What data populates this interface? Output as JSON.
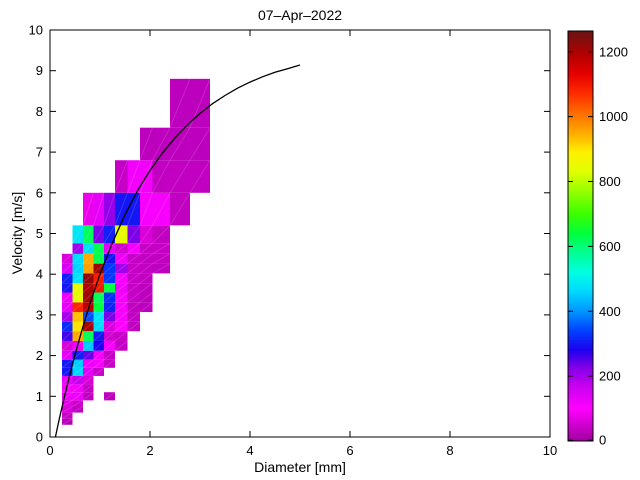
{
  "figure": {
    "background": "#ffffff"
  },
  "chart_data": {
    "type": "heatmap",
    "title": "07–Apr–2022",
    "xlabel": "Diameter [mm]",
    "ylabel": "Velocity [m/s]",
    "xlim": [
      0,
      10
    ],
    "ylim": [
      0,
      10
    ],
    "xticks": [
      0,
      2,
      4,
      6,
      8,
      10
    ],
    "yticks": [
      0,
      1,
      2,
      3,
      4,
      5,
      6,
      7,
      8,
      9,
      10
    ],
    "grid": "off",
    "colorbar": {
      "position": "right",
      "min": 0,
      "max": 1264,
      "ticks": [
        0,
        200,
        400,
        600,
        800,
        1000,
        1200
      ],
      "colormap_stops": [
        [
          0,
          "#a000a0"
        ],
        [
          100,
          "#ff00ff"
        ],
        [
          170,
          "#c800f0"
        ],
        [
          230,
          "#7d00e6"
        ],
        [
          280,
          "#1e00f0"
        ],
        [
          340,
          "#0041ff"
        ],
        [
          400,
          "#0096ff"
        ],
        [
          460,
          "#00d7ff"
        ],
        [
          520,
          "#00ffe1"
        ],
        [
          580,
          "#00ff91"
        ],
        [
          640,
          "#00ff3c"
        ],
        [
          700,
          "#3cff00"
        ],
        [
          770,
          "#96ff00"
        ],
        [
          830,
          "#e1ff00"
        ],
        [
          890,
          "#fff000"
        ],
        [
          950,
          "#ffaa00"
        ],
        [
          1010,
          "#ff6e00"
        ],
        [
          1070,
          "#ff2d00"
        ],
        [
          1130,
          "#e60000"
        ],
        [
          1190,
          "#b40000"
        ],
        [
          1264,
          "#691414"
        ]
      ]
    },
    "diameter_bin_edges": [
      0.24,
      0.45,
      0.66,
      0.87,
      1.08,
      1.3,
      1.55,
      1.8,
      2.05,
      2.4,
      2.8,
      3.2
    ],
    "velocity_bin_edges": [
      0.3,
      0.45,
      0.6,
      0.75,
      0.9,
      1.1,
      1.3,
      1.5,
      1.7,
      1.9,
      2.12,
      2.36,
      2.6,
      2.83,
      3.07,
      3.31,
      3.55,
      3.78,
      4.02,
      4.26,
      4.5,
      4.76,
      5.2,
      6.0,
      6.8,
      7.6,
      8.8
    ],
    "cells": [
      [
        0,
        0,
        25
      ],
      [
        0,
        1,
        40
      ],
      [
        0,
        2,
        60
      ],
      [
        1,
        2,
        35
      ],
      [
        0,
        3,
        70
      ],
      [
        1,
        3,
        45
      ],
      [
        0,
        4,
        120
      ],
      [
        1,
        4,
        120
      ],
      [
        2,
        4,
        35
      ],
      [
        4,
        4,
        30
      ],
      [
        0,
        5,
        110
      ],
      [
        1,
        5,
        115
      ],
      [
        2,
        5,
        40
      ],
      [
        0,
        6,
        130
      ],
      [
        1,
        6,
        170
      ],
      [
        2,
        6,
        60
      ],
      [
        0,
        7,
        300
      ],
      [
        1,
        7,
        460
      ],
      [
        2,
        7,
        140
      ],
      [
        3,
        7,
        45
      ],
      [
        0,
        8,
        300
      ],
      [
        1,
        8,
        450
      ],
      [
        2,
        8,
        120
      ],
      [
        3,
        8,
        110
      ],
      [
        4,
        8,
        40
      ],
      [
        0,
        9,
        130
      ],
      [
        1,
        9,
        310
      ],
      [
        2,
        9,
        240
      ],
      [
        3,
        9,
        110
      ],
      [
        4,
        9,
        40
      ],
      [
        0,
        10,
        60
      ],
      [
        1,
        10,
        120
      ],
      [
        2,
        10,
        450
      ],
      [
        3,
        10,
        280
      ],
      [
        4,
        10,
        110
      ],
      [
        5,
        10,
        40
      ],
      [
        0,
        11,
        260
      ],
      [
        1,
        11,
        950
      ],
      [
        2,
        11,
        620
      ],
      [
        3,
        11,
        300
      ],
      [
        4,
        11,
        50
      ],
      [
        5,
        11,
        40
      ],
      [
        0,
        12,
        320
      ],
      [
        1,
        12,
        900
      ],
      [
        2,
        12,
        1200
      ],
      [
        3,
        12,
        470
      ],
      [
        4,
        12,
        60
      ],
      [
        5,
        12,
        100
      ],
      [
        6,
        12,
        35
      ],
      [
        0,
        13,
        200
      ],
      [
        1,
        13,
        930
      ],
      [
        2,
        13,
        350
      ],
      [
        3,
        13,
        480
      ],
      [
        4,
        13,
        230
      ],
      [
        5,
        13,
        110
      ],
      [
        6,
        13,
        35
      ],
      [
        0,
        14,
        130
      ],
      [
        1,
        14,
        1080
      ],
      [
        2,
        14,
        1180
      ],
      [
        3,
        14,
        640
      ],
      [
        4,
        14,
        310
      ],
      [
        5,
        14,
        110
      ],
      [
        6,
        14,
        35
      ],
      [
        7,
        14,
        30
      ],
      [
        0,
        15,
        120
      ],
      [
        1,
        15,
        840
      ],
      [
        2,
        15,
        1210
      ],
      [
        3,
        15,
        620
      ],
      [
        4,
        15,
        320
      ],
      [
        5,
        15,
        110
      ],
      [
        6,
        15,
        40
      ],
      [
        7,
        15,
        30
      ],
      [
        0,
        16,
        300
      ],
      [
        1,
        16,
        850
      ],
      [
        2,
        16,
        1200
      ],
      [
        3,
        16,
        1100
      ],
      [
        4,
        16,
        640
      ],
      [
        5,
        16,
        120
      ],
      [
        6,
        16,
        40
      ],
      [
        7,
        16,
        30
      ],
      [
        0,
        17,
        310
      ],
      [
        1,
        17,
        480
      ],
      [
        2,
        17,
        1220
      ],
      [
        3,
        17,
        1090
      ],
      [
        4,
        17,
        330
      ],
      [
        5,
        17,
        110
      ],
      [
        6,
        17,
        40
      ],
      [
        7,
        17,
        35
      ],
      [
        0,
        18,
        150
      ],
      [
        1,
        18,
        460
      ],
      [
        2,
        18,
        960
      ],
      [
        3,
        18,
        1210
      ],
      [
        4,
        18,
        330
      ],
      [
        5,
        18,
        200
      ],
      [
        6,
        18,
        40
      ],
      [
        7,
        18,
        35
      ],
      [
        8,
        18,
        30
      ],
      [
        0,
        19,
        60
      ],
      [
        1,
        19,
        470
      ],
      [
        2,
        19,
        950
      ],
      [
        3,
        19,
        630
      ],
      [
        4,
        19,
        300
      ],
      [
        5,
        19,
        120
      ],
      [
        6,
        19,
        40
      ],
      [
        7,
        19,
        35
      ],
      [
        8,
        19,
        35
      ],
      [
        1,
        20,
        200
      ],
      [
        2,
        20,
        470
      ],
      [
        3,
        20,
        630
      ],
      [
        4,
        20,
        130
      ],
      [
        5,
        20,
        50
      ],
      [
        6,
        20,
        110
      ],
      [
        7,
        20,
        40
      ],
      [
        8,
        20,
        40
      ],
      [
        1,
        21,
        480
      ],
      [
        2,
        21,
        620
      ],
      [
        3,
        21,
        230
      ],
      [
        4,
        21,
        310
      ],
      [
        5,
        21,
        840
      ],
      [
        6,
        21,
        230
      ],
      [
        7,
        21,
        60
      ],
      [
        8,
        21,
        35
      ],
      [
        2,
        22,
        80
      ],
      [
        3,
        22,
        130
      ],
      [
        4,
        22,
        210
      ],
      [
        5,
        22,
        300
      ],
      [
        6,
        22,
        300
      ],
      [
        7,
        22,
        110
      ],
      [
        8,
        22,
        110
      ],
      [
        9,
        22,
        35
      ],
      [
        5,
        23,
        40
      ],
      [
        6,
        23,
        115
      ],
      [
        7,
        23,
        115
      ],
      [
        8,
        23,
        35
      ],
      [
        9,
        23,
        35
      ],
      [
        10,
        23,
        35
      ],
      [
        7,
        24,
        30
      ],
      [
        8,
        24,
        30
      ],
      [
        9,
        24,
        30
      ],
      [
        10,
        24,
        30
      ],
      [
        9,
        25,
        30
      ],
      [
        10,
        25,
        30
      ]
    ],
    "fit_curve": {
      "name": "terminal-velocity-curve",
      "formula": "v = 9.65 - 10.3*exp(-0.6*D)",
      "color": "#000000",
      "points": [
        [
          0.11,
          0.01
        ],
        [
          0.15,
          0.24
        ],
        [
          0.2,
          0.52
        ],
        [
          0.3,
          1.05
        ],
        [
          0.4,
          1.55
        ],
        [
          0.5,
          2.02
        ],
        [
          0.625,
          2.57
        ],
        [
          0.75,
          3.08
        ],
        [
          0.875,
          3.56
        ],
        [
          1.0,
          4.0
        ],
        [
          1.25,
          4.78
        ],
        [
          1.5,
          5.46
        ],
        [
          1.75,
          6.05
        ],
        [
          2.0,
          6.55
        ],
        [
          2.25,
          6.98
        ],
        [
          2.5,
          7.35
        ],
        [
          2.75,
          7.67
        ],
        [
          3.0,
          7.95
        ],
        [
          3.25,
          8.19
        ],
        [
          3.5,
          8.39
        ],
        [
          3.75,
          8.57
        ],
        [
          4.0,
          8.72
        ],
        [
          4.25,
          8.85
        ],
        [
          4.5,
          8.96
        ],
        [
          4.75,
          9.05
        ],
        [
          5.0,
          9.14
        ]
      ]
    }
  }
}
